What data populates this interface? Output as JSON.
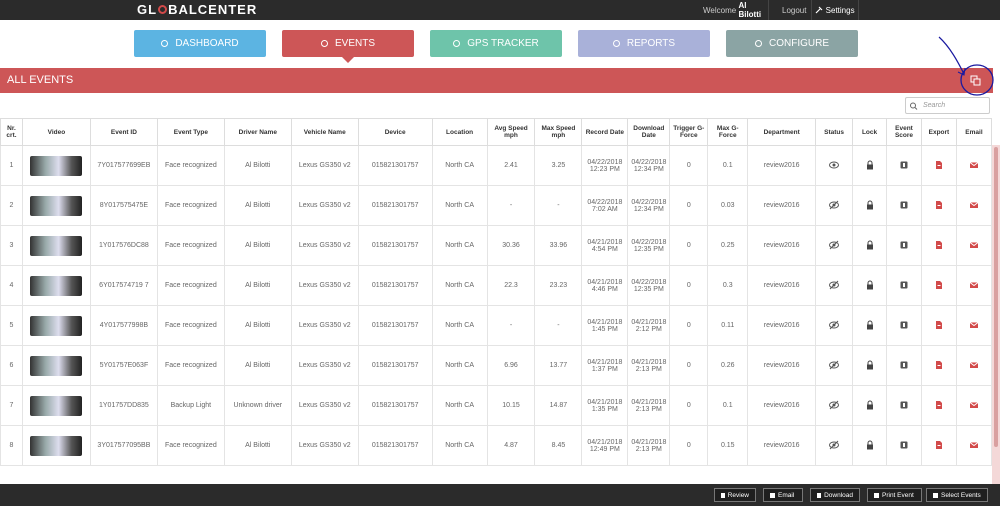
{
  "header": {
    "logo": [
      "GL",
      "BAL",
      "CENTER"
    ],
    "welcome": "Welcome",
    "user": "Al Bilotti",
    "logout": "Logout",
    "settings": "Settings"
  },
  "nav": [
    {
      "label": "DASHBOARD",
      "color": "#5cb4e2"
    },
    {
      "label": "EVENTS",
      "color": "#cd5657",
      "active": true
    },
    {
      "label": "GPS TRACKER",
      "color": "#6ec4aa"
    },
    {
      "label": "REPORTS",
      "color": "#a9b1d9"
    },
    {
      "label": "CONFIGURE",
      "color": "#8ba4a4"
    }
  ],
  "banner": {
    "title": "ALL EVENTS"
  },
  "search": {
    "placeholder": "Search"
  },
  "table": {
    "columns": [
      "Nr. crt.",
      "Video",
      "Event ID",
      "Event Type",
      "Driver Name",
      "Vehicle Name",
      "Device",
      "Location",
      "Avg Speed mph",
      "Max Speed mph",
      "Record Date",
      "Download Date",
      "Trigger G-Force",
      "Max G-Force",
      "Department",
      "Status",
      "Lock",
      "Event Score",
      "Export",
      "Email"
    ],
    "rows": [
      {
        "nr": "1",
        "event_id": "7Y017577699EB",
        "event_type": "Face recognized",
        "driver": "Al Bilotti",
        "vehicle": "Lexus GS350 v2",
        "device": "015821301757",
        "location": "North CA",
        "avg_speed": "2.41",
        "max_speed": "3.25",
        "record_date": [
          "04/22/2018",
          "12:23 PM"
        ],
        "download_date": [
          "04/22/2018",
          "12:34 PM"
        ],
        "trigger_g": "0",
        "max_g": "0.1",
        "department": "review2016",
        "status": "visible"
      },
      {
        "nr": "2",
        "event_id": "8Y017575475E",
        "event_type": "Face recognized",
        "driver": "Al Bilotti",
        "vehicle": "Lexus GS350 v2",
        "device": "015821301757",
        "location": "North CA",
        "avg_speed": "-",
        "max_speed": "-",
        "record_date": [
          "04/22/2018",
          "7:02 AM"
        ],
        "download_date": [
          "04/22/2018",
          "12:34 PM"
        ],
        "trigger_g": "0",
        "max_g": "0.03",
        "department": "review2016",
        "status": "hidden"
      },
      {
        "nr": "3",
        "event_id": "1Y017576DC88",
        "event_type": "Face recognized",
        "driver": "Al Bilotti",
        "vehicle": "Lexus GS350 v2",
        "device": "015821301757",
        "location": "North CA",
        "avg_speed": "30.36",
        "max_speed": "33.96",
        "record_date": [
          "04/21/2018",
          "4:54 PM"
        ],
        "download_date": [
          "04/22/2018",
          "12:35 PM"
        ],
        "trigger_g": "0",
        "max_g": "0.25",
        "department": "review2016",
        "status": "hidden"
      },
      {
        "nr": "4",
        "event_id": "6Y017574719 7",
        "event_type": "Face recognized",
        "driver": "Al Bilotti",
        "vehicle": "Lexus GS350 v2",
        "device": "015821301757",
        "location": "North CA",
        "avg_speed": "22.3",
        "max_speed": "23.23",
        "record_date": [
          "04/21/2018",
          "4:46 PM"
        ],
        "download_date": [
          "04/22/2018",
          "12:35 PM"
        ],
        "trigger_g": "0",
        "max_g": "0.3",
        "department": "review2016",
        "status": "hidden"
      },
      {
        "nr": "5",
        "event_id": "4Y017577998B",
        "event_type": "Face recognized",
        "driver": "Al Bilotti",
        "vehicle": "Lexus GS350 v2",
        "device": "015821301757",
        "location": "North CA",
        "avg_speed": "-",
        "max_speed": "-",
        "record_date": [
          "04/21/2018",
          "1:45 PM"
        ],
        "download_date": [
          "04/21/2018",
          "2:12 PM"
        ],
        "trigger_g": "0",
        "max_g": "0.11",
        "department": "review2016",
        "status": "hidden"
      },
      {
        "nr": "6",
        "event_id": "5Y01757E063F",
        "event_type": "Face recognized",
        "driver": "Al Bilotti",
        "vehicle": "Lexus GS350 v2",
        "device": "015821301757",
        "location": "North CA",
        "avg_speed": "6.96",
        "max_speed": "13.77",
        "record_date": [
          "04/21/2018",
          "1:37 PM"
        ],
        "download_date": [
          "04/21/2018",
          "2:13 PM"
        ],
        "trigger_g": "0",
        "max_g": "0.26",
        "department": "review2016",
        "status": "hidden"
      },
      {
        "nr": "7",
        "event_id": "1Y01757DD835",
        "event_type": "Backup Light",
        "driver": "Unknown driver",
        "vehicle": "Lexus GS350 v2",
        "device": "015821301757",
        "location": "North CA",
        "avg_speed": "10.15",
        "max_speed": "14.87",
        "record_date": [
          "04/21/2018",
          "1:35 PM"
        ],
        "download_date": [
          "04/21/2018",
          "2:13 PM"
        ],
        "trigger_g": "0",
        "max_g": "0.1",
        "department": "review2016",
        "status": "hidden"
      },
      {
        "nr": "8",
        "event_id": "3Y017577095BB",
        "event_type": "Face recognized",
        "driver": "Al Bilotti",
        "vehicle": "Lexus GS350 v2",
        "device": "015821301757",
        "location": "North CA",
        "avg_speed": "4.87",
        "max_speed": "8.45",
        "record_date": [
          "04/21/2018",
          "12:49 PM"
        ],
        "download_date": [
          "04/21/2018",
          "2:13 PM"
        ],
        "trigger_g": "0",
        "max_g": "0.15",
        "department": "review2016",
        "status": "hidden"
      }
    ]
  },
  "footer": {
    "buttons": [
      "Review",
      "Email",
      "Download",
      "Print Event",
      "Select Events"
    ]
  }
}
